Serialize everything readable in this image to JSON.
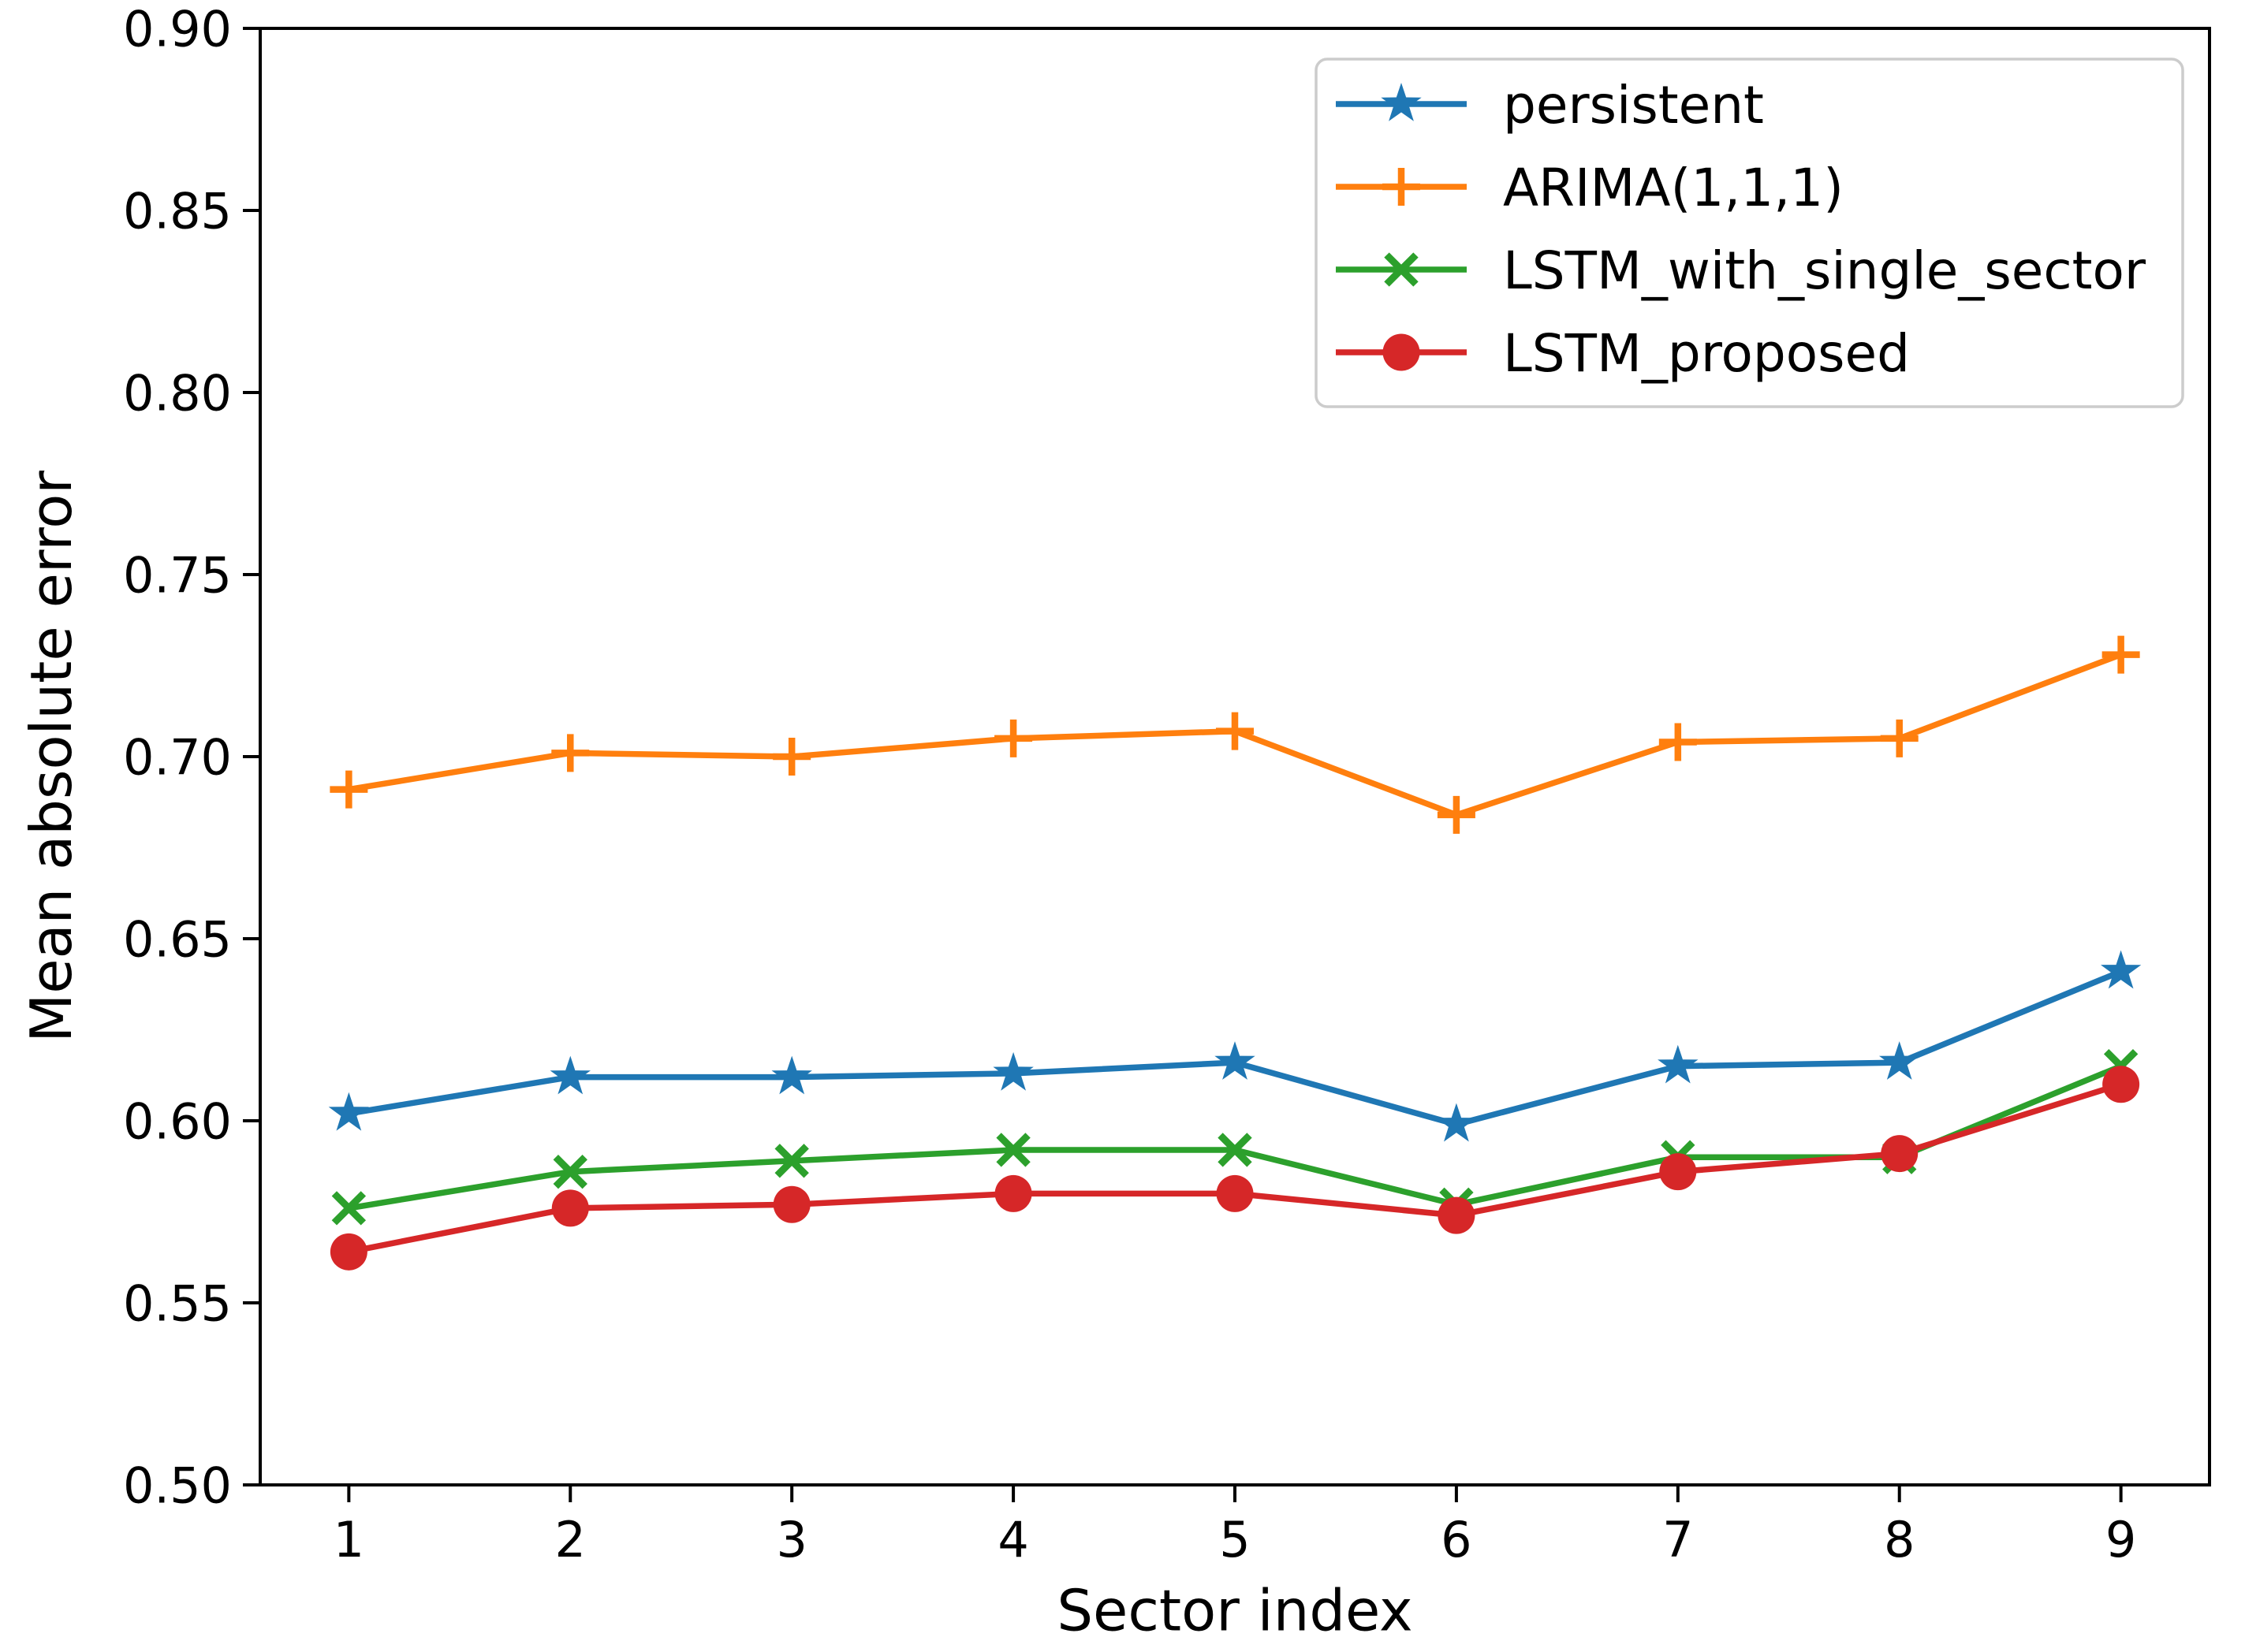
{
  "chart_data": {
    "type": "line",
    "title": "",
    "xlabel": "Sector index",
    "ylabel": "Mean absolute error",
    "x": [
      1,
      2,
      3,
      4,
      5,
      6,
      7,
      8,
      9
    ],
    "xtick_labels": [
      "1",
      "2",
      "3",
      "4",
      "5",
      "6",
      "7",
      "8",
      "9"
    ],
    "ytick_labels": [
      "0.50",
      "0.55",
      "0.60",
      "0.65",
      "0.70",
      "0.75",
      "0.80",
      "0.85",
      "0.90"
    ],
    "xlim": [
      0.6,
      9.4
    ],
    "ylim": [
      0.5,
      0.9
    ],
    "grid": false,
    "background_color": "#ffffff",
    "axis_color": "#000000",
    "legend": {
      "position": "upper right",
      "border_color": "#cccccc",
      "background_color": "#ffffff"
    },
    "series": [
      {
        "name": "persistent",
        "color": "#1f77b4",
        "marker": "star",
        "values": [
          0.602,
          0.612,
          0.612,
          0.613,
          0.616,
          0.599,
          0.615,
          0.616,
          0.641
        ]
      },
      {
        "name": "ARIMA(1,1,1)",
        "color": "#ff7f0e",
        "marker": "plus",
        "values": [
          0.691,
          0.701,
          0.7,
          0.705,
          0.707,
          0.684,
          0.704,
          0.705,
          0.728
        ]
      },
      {
        "name": "LSTM_with_single_sector",
        "color": "#2ca02c",
        "marker": "x",
        "values": [
          0.576,
          0.586,
          0.589,
          0.592,
          0.592,
          0.577,
          0.59,
          0.59,
          0.615
        ]
      },
      {
        "name": "LSTM_proposed",
        "color": "#d62728",
        "marker": "circle",
        "values": [
          0.564,
          0.576,
          0.577,
          0.58,
          0.58,
          0.574,
          0.586,
          0.591,
          0.61
        ]
      }
    ]
  }
}
